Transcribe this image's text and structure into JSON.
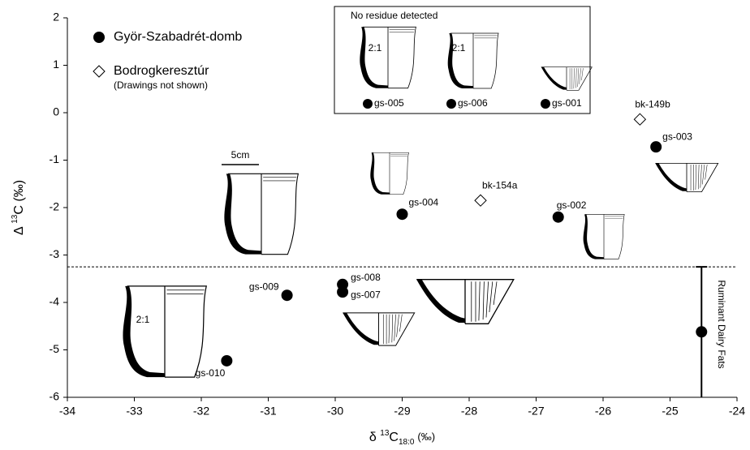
{
  "chart_data": {
    "type": "scatter",
    "xlim": [
      -34,
      -24
    ],
    "ylim": [
      -6,
      2
    ],
    "xticks": [
      -34,
      -33,
      -32,
      -31,
      -30,
      -29,
      -28,
      -27,
      -26,
      -25,
      -24
    ],
    "yticks": [
      -6,
      -5,
      -4,
      -3,
      -2,
      -1,
      0,
      1,
      2
    ],
    "x_label": [
      "δ",
      "13",
      "C",
      "18:0",
      "(‰)"
    ],
    "y_label": [
      "Δ",
      "13",
      "C (‰)"
    ],
    "series": [
      {
        "name": "Györ-Szabadrét-domb",
        "marker": "circle",
        "color": "#000000",
        "x": [
          -25.21,
          -29.0,
          -26.67,
          -30.72,
          -29.89,
          -29.89,
          -31.62,
          -24.53
        ],
        "y": [
          -0.72,
          -2.14,
          -2.2,
          -3.85,
          -3.62,
          -3.78,
          -5.23,
          -4.62
        ],
        "labels": [
          "gs-003",
          "gs-004",
          "gs-002",
          "gs-009",
          "gs-008",
          "gs-007",
          "gs-010",
          null
        ]
      },
      {
        "name": "Bodrogkeresztúr",
        "marker": "diamond",
        "color": "#ffffff",
        "note": "(Drawings not shown)",
        "x": [
          -25.45,
          -27.83
        ],
        "y": [
          -0.14,
          -1.85
        ],
        "labels": [
          "bk-149b",
          "bk-154a"
        ]
      }
    ],
    "threshold": {
      "y": -3.25,
      "label": "Ruminant Dairy Fats"
    },
    "inset": {
      "title": "No residue detected",
      "labels": [
        "gs-005",
        "gs-006",
        "gs-001"
      ],
      "ratios": [
        "2:1",
        "2:1"
      ]
    },
    "drawing_labels": [
      "5cm",
      "2:1"
    ]
  }
}
